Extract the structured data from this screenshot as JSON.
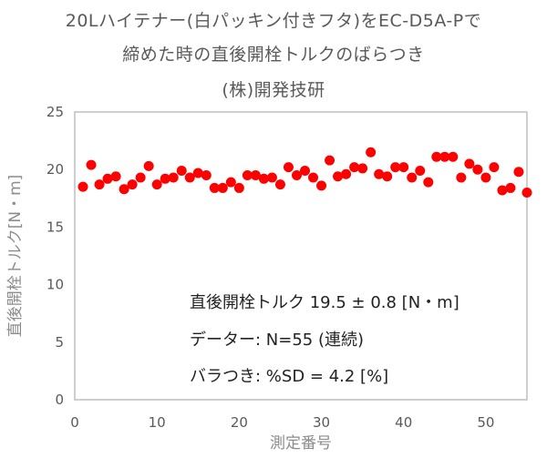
{
  "chart_data": {
    "type": "scatter",
    "title_lines": [
      "20Lハイテナー(白パッキン付きフタ)をEC-D5A-Pで",
      "締めた時の直後開栓トルクのばらつき",
      "(株)開発技研"
    ],
    "xlabel": "測定番号",
    "ylabel": "直後開栓トルク[N・m]",
    "xlim": [
      0,
      55
    ],
    "ylim": [
      0,
      25
    ],
    "xticks": [
      0,
      10,
      20,
      30,
      40,
      50
    ],
    "yticks": [
      0,
      5,
      10,
      15,
      20,
      25
    ],
    "grid": false,
    "marker_color": "#ff0000",
    "x": [
      1,
      2,
      3,
      4,
      5,
      6,
      7,
      8,
      9,
      10,
      11,
      12,
      13,
      14,
      15,
      16,
      17,
      18,
      19,
      20,
      21,
      22,
      23,
      24,
      25,
      26,
      27,
      28,
      29,
      30,
      31,
      32,
      33,
      34,
      35,
      36,
      37,
      38,
      39,
      40,
      41,
      42,
      43,
      44,
      45,
      46,
      47,
      48,
      49,
      50,
      51,
      52,
      53,
      54,
      55
    ],
    "y": [
      18.5,
      20.4,
      18.7,
      19.2,
      19.4,
      18.3,
      18.7,
      19.3,
      20.3,
      18.7,
      19.2,
      19.3,
      19.9,
      19.3,
      19.7,
      19.5,
      18.4,
      18.4,
      18.9,
      18.4,
      19.5,
      19.5,
      19.2,
      19.3,
      18.7,
      20.2,
      19.5,
      19.9,
      19.3,
      18.6,
      20.8,
      19.4,
      19.6,
      20.2,
      20.1,
      21.5,
      19.6,
      19.4,
      20.2,
      20.2,
      19.3,
      19.9,
      18.9,
      21.1,
      21.1,
      21.1,
      19.3,
      20.5,
      20.0,
      19.3,
      20.2,
      18.2,
      18.4,
      19.8,
      18.0
    ],
    "annotations": [
      "直後開栓トルク 19.5 ± 0.8 [N・m]",
      "データー: N=55 (連続)",
      "バラつき: %SD = 4.2 [%]"
    ]
  }
}
